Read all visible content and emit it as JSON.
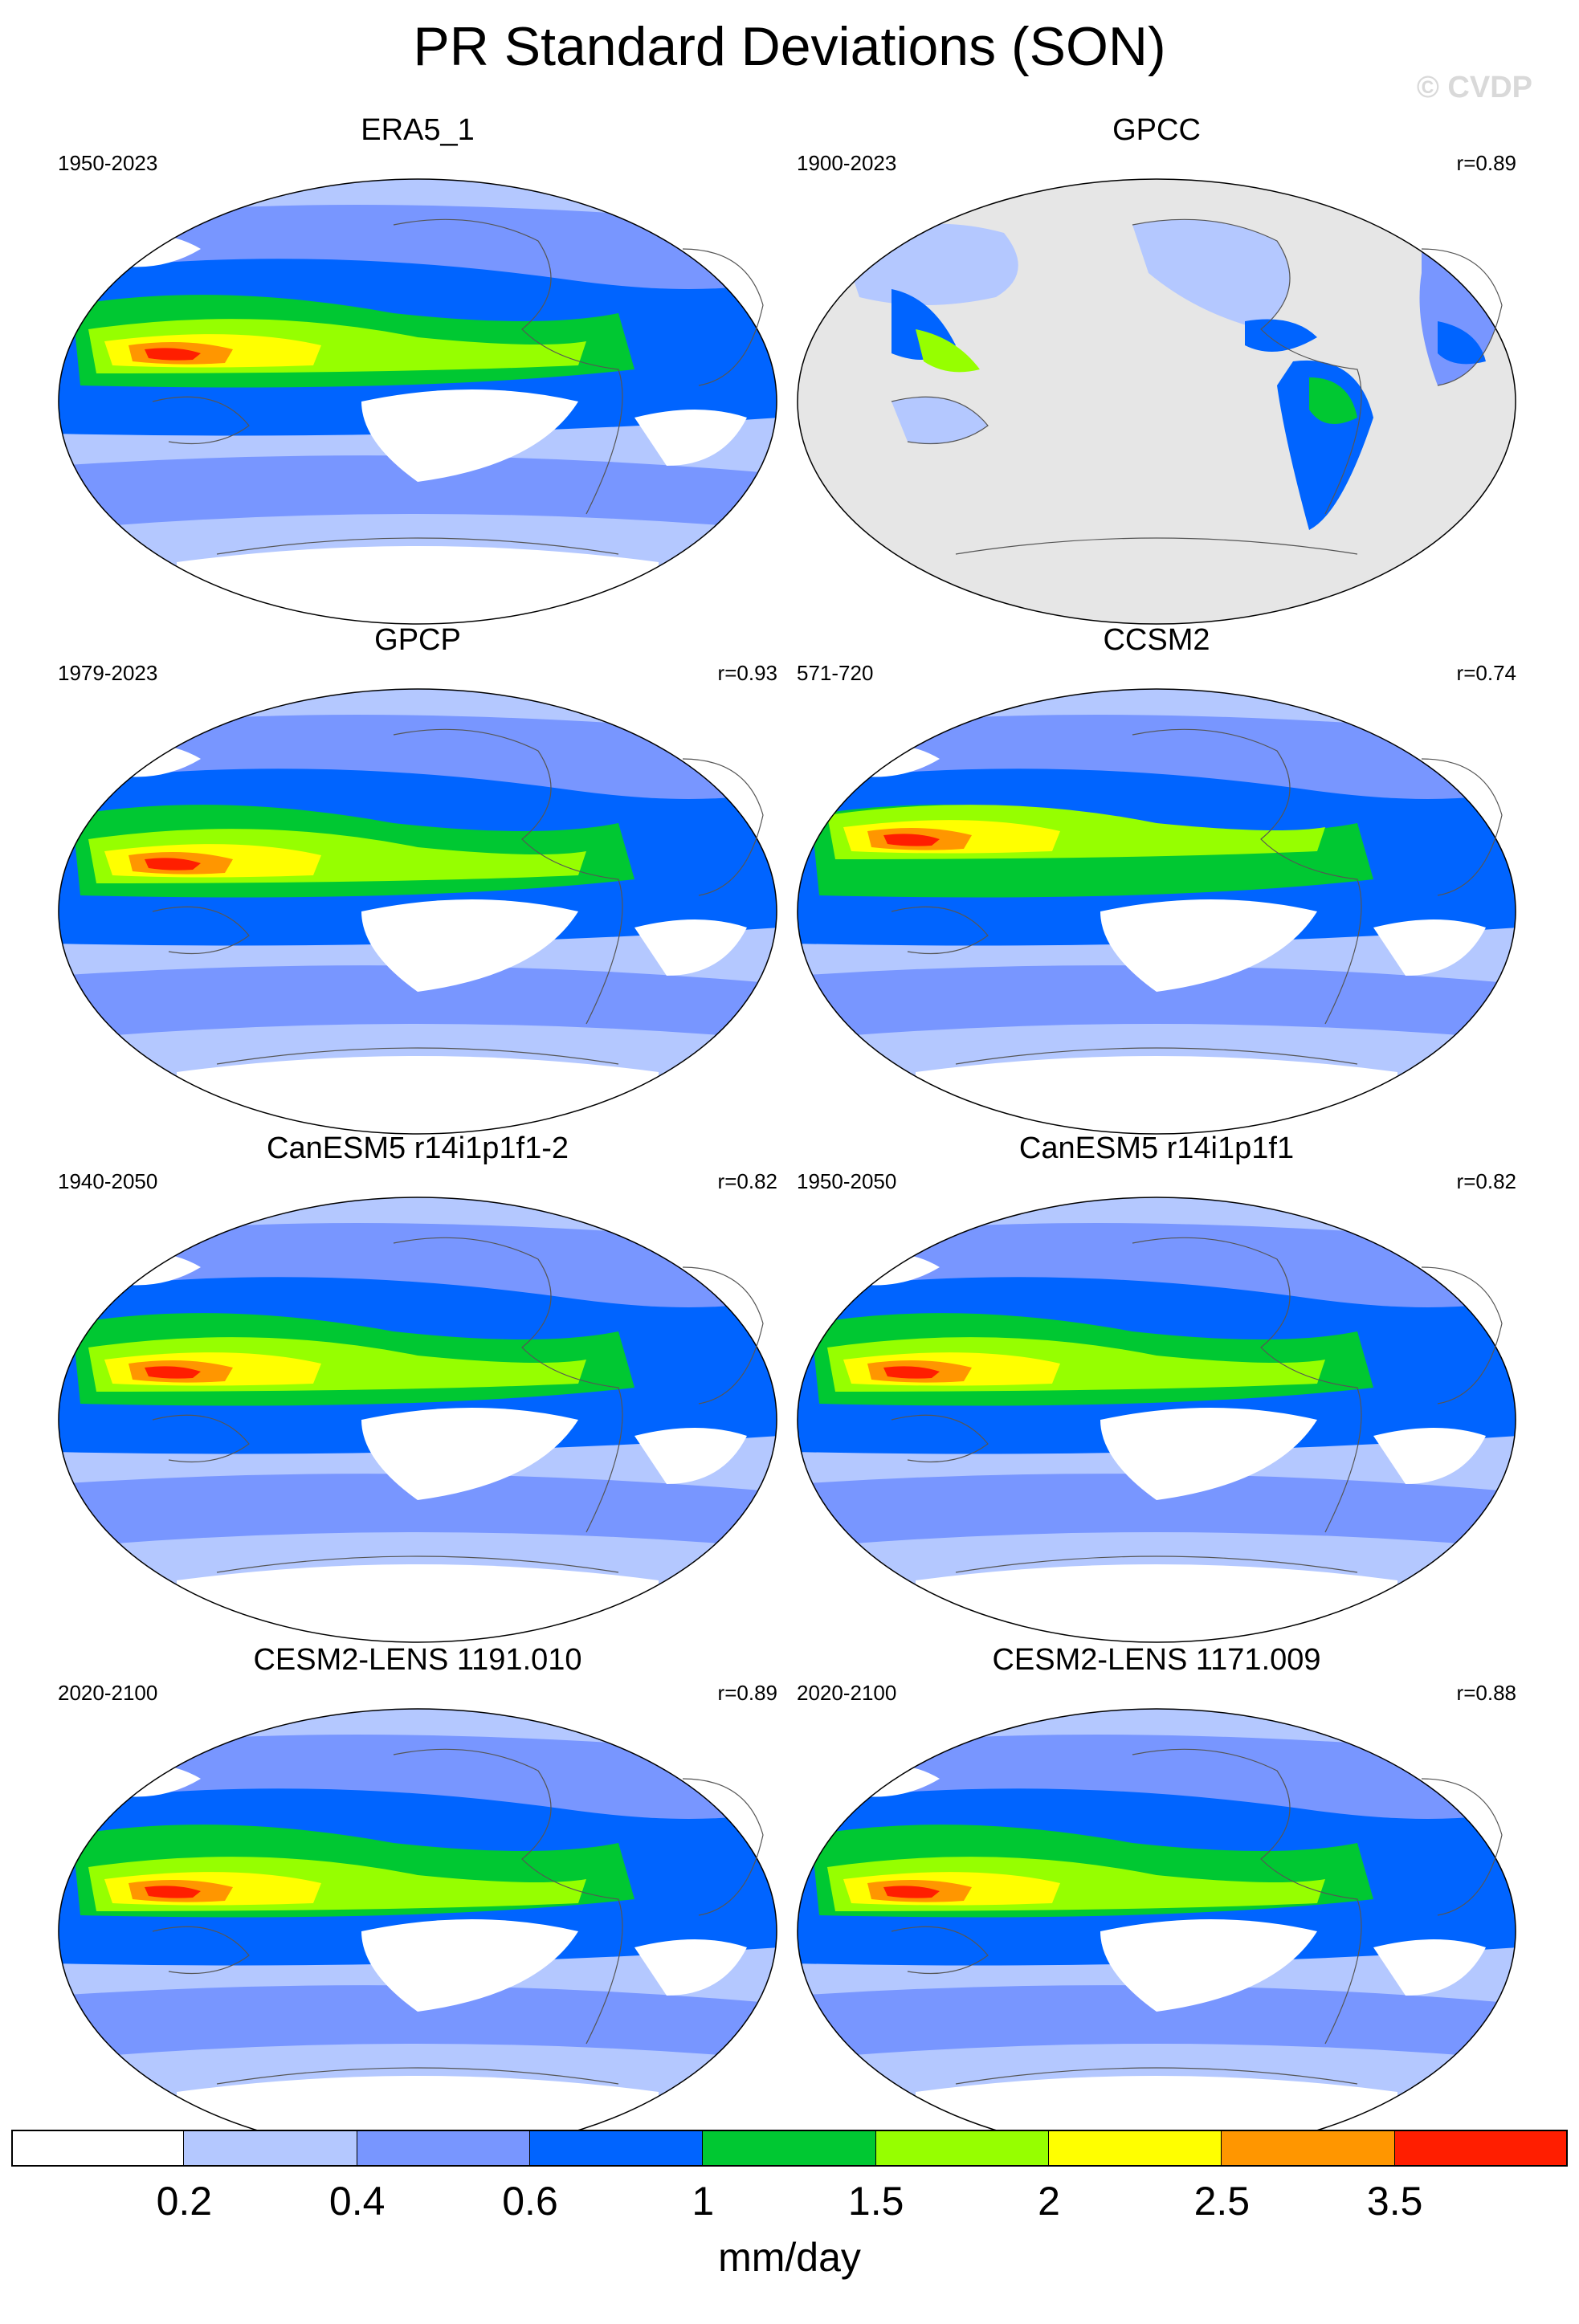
{
  "title": "PR Standard Deviations (SON)",
  "watermark": "© CVDP",
  "panels": [
    {
      "name": "ERA5_1",
      "period": "1950-2023",
      "r": ""
    },
    {
      "name": "GPCC",
      "period": "1900-2023",
      "r": "r=0.89"
    },
    {
      "name": "GPCP",
      "period": "1979-2023",
      "r": "r=0.93"
    },
    {
      "name": "CCSM2",
      "period": "571-720",
      "r": "r=0.74"
    },
    {
      "name": "CanESM5 r14i1p1f1-2",
      "period": "1940-2050",
      "r": "r=0.82"
    },
    {
      "name": "CanESM5 r14i1p1f1",
      "period": "1950-2050",
      "r": "r=0.82"
    },
    {
      "name": "CESM2-LENS 1191.010",
      "period": "2020-2100",
      "r": "r=0.89"
    },
    {
      "name": "CESM2-LENS 1171.009",
      "period": "2020-2100",
      "r": "r=0.88"
    }
  ],
  "colorbar": {
    "labels": [
      "0.2",
      "0.4",
      "0.6",
      "1",
      "1.5",
      "2",
      "2.5",
      "3.5"
    ],
    "colors": [
      "#ffffff",
      "#b4c8ff",
      "#7896ff",
      "#0064ff",
      "#00c832",
      "#96ff00",
      "#ffff00",
      "#ff9600",
      "#ff1e00"
    ],
    "units": "mm/day"
  }
}
